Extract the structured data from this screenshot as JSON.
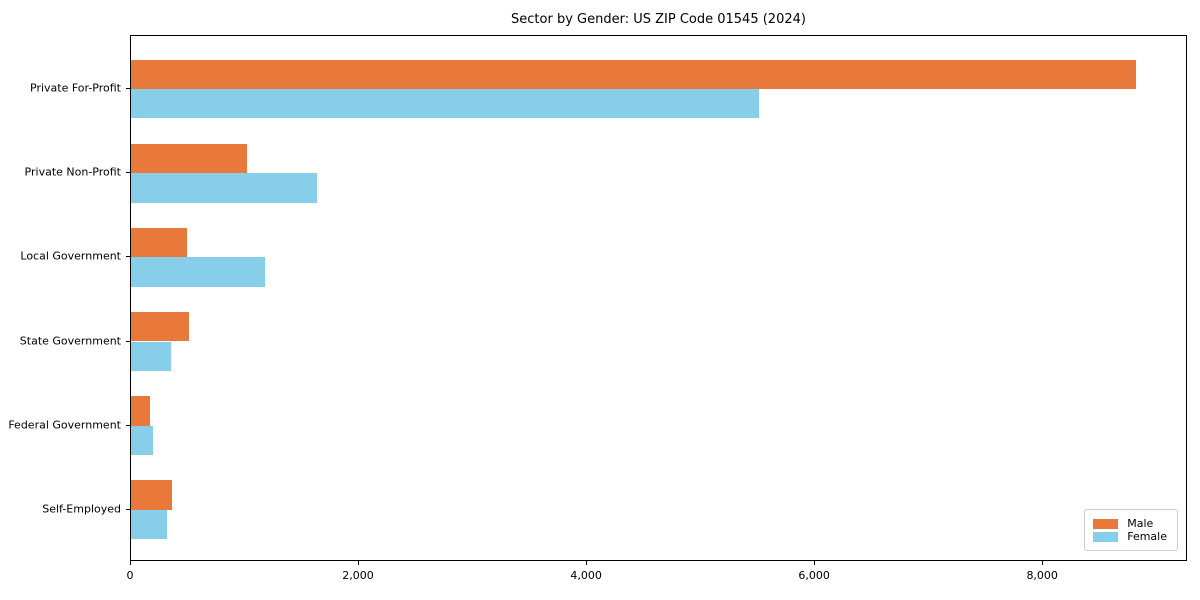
{
  "chart_data": {
    "type": "bar",
    "orientation": "horizontal",
    "title": "Sector by Gender: US ZIP Code 01545 (2024)",
    "categories": [
      "Private For-Profit",
      "Private Non-Profit",
      "Local Government",
      "State Government",
      "Federal Government",
      "Self-Employed"
    ],
    "series": [
      {
        "name": "Male",
        "color": "#e8793b",
        "values": [
          8810,
          1020,
          495,
          510,
          170,
          360
        ]
      },
      {
        "name": "Female",
        "color": "#87ceeb",
        "values": [
          5510,
          1630,
          1175,
          355,
          195,
          320
        ]
      }
    ],
    "xlabel": "",
    "ylabel": "",
    "xlim": [
      0,
      9270
    ],
    "xticks": [
      {
        "value": 0,
        "label": "0"
      },
      {
        "value": 2000,
        "label": "2,000"
      },
      {
        "value": 4000,
        "label": "4,000"
      },
      {
        "value": 6000,
        "label": "6,000"
      },
      {
        "value": 8000,
        "label": "8,000"
      }
    ],
    "grid": false,
    "legend": {
      "position": "lower right",
      "entries": [
        "Male",
        "Female"
      ]
    }
  }
}
